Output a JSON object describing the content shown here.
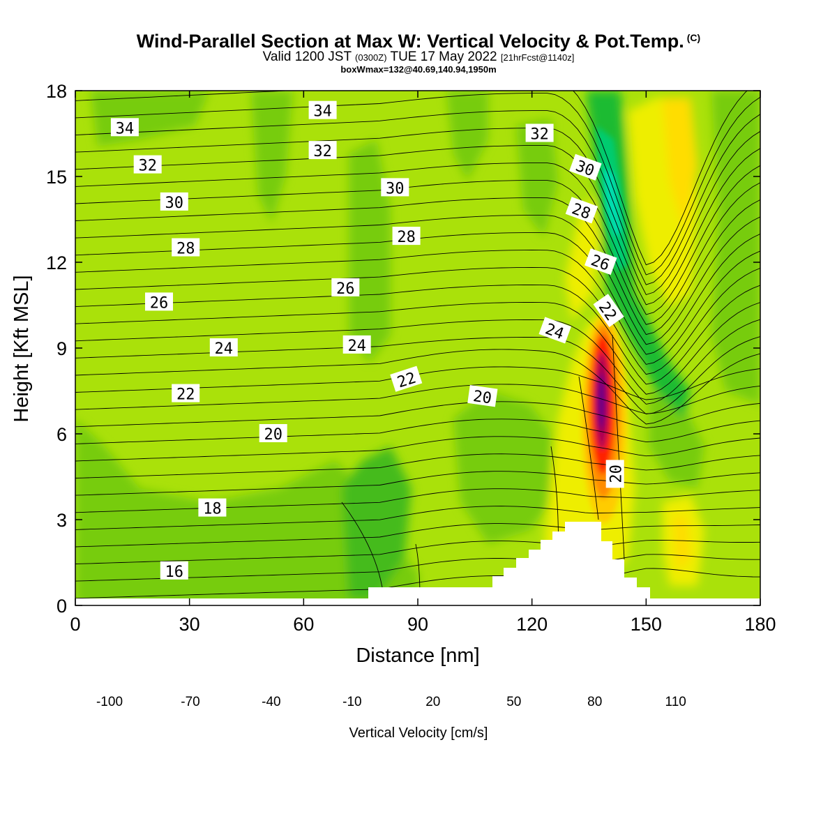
{
  "title": {
    "main": "Wind-Parallel Section at Max W: Vertical Velocity & Pot.Temp.",
    "copyright": "(C)",
    "valid_prefix": "Valid 1200 JST",
    "valid_utc": "(0300Z)",
    "valid_date": "TUE 17 May 2022",
    "forecast": "[21hrFcst@1140z]",
    "boxwmax": "boxWmax=132@40.69,140.94,1950m"
  },
  "chart_data": {
    "type": "heatmap",
    "xlabel": "Distance [nm]",
    "ylabel": "Height [Kft MSL]",
    "xlim": [
      0,
      180
    ],
    "ylim": [
      0,
      18
    ],
    "xticks": [
      "0",
      "30",
      "60",
      "90",
      "120",
      "150",
      "180"
    ],
    "yticks": [
      "0",
      "3",
      "6",
      "9",
      "12",
      "15",
      "18"
    ],
    "colorbar": {
      "title": "Vertical Velocity [cm/s]",
      "labels": [
        "-100",
        "-70",
        "-40",
        "-10",
        "20",
        "50",
        "80",
        "110"
      ],
      "levels": [
        -100,
        -90,
        -80,
        -70,
        -60,
        -50,
        -40,
        -30,
        -20,
        -10,
        0,
        10,
        20,
        30,
        40,
        50,
        60,
        70,
        80,
        90,
        100,
        110,
        120,
        130
      ],
      "colors": [
        "#0000ee",
        "#0044ee",
        "#0088ee",
        "#00bbee",
        "#00eeee",
        "#00ddb0",
        "#00cc70",
        "#1fbb30",
        "#44bb1c",
        "#77cc11",
        "#aae10a",
        "#eeee00",
        "#ffdd00",
        "#ffcc00",
        "#ffaa00",
        "#ff8c00",
        "#ff6600",
        "#ff2200",
        "#ee1100",
        "#cc0033",
        "#aa0055",
        "#880066",
        "#660088"
      ]
    },
    "contours": {
      "field": "Potential Temperature",
      "labels": [
        {
          "text": "34",
          "x": 13,
          "y": 16.7
        },
        {
          "text": "34",
          "x": 65,
          "y": 17.3
        },
        {
          "text": "32",
          "x": 19,
          "y": 15.4
        },
        {
          "text": "32",
          "x": 65,
          "y": 15.9
        },
        {
          "text": "32",
          "x": 122,
          "y": 16.5
        },
        {
          "text": "30",
          "x": 26,
          "y": 14.1
        },
        {
          "text": "30",
          "x": 84,
          "y": 14.6
        },
        {
          "text": "30",
          "x": 134,
          "y": 15.3
        },
        {
          "text": "28",
          "x": 29,
          "y": 12.5
        },
        {
          "text": "28",
          "x": 87,
          "y": 12.9
        },
        {
          "text": "28",
          "x": 133,
          "y": 13.8
        },
        {
          "text": "26",
          "x": 22,
          "y": 10.6
        },
        {
          "text": "26",
          "x": 71,
          "y": 11.1
        },
        {
          "text": "26",
          "x": 138,
          "y": 12.0
        },
        {
          "text": "24",
          "x": 39,
          "y": 9.0
        },
        {
          "text": "24",
          "x": 74,
          "y": 9.1
        },
        {
          "text": "24",
          "x": 126,
          "y": 9.6
        },
        {
          "text": "22",
          "x": 29,
          "y": 7.4
        },
        {
          "text": "22",
          "x": 87,
          "y": 7.9
        },
        {
          "text": "22",
          "x": 140,
          "y": 10.3
        },
        {
          "text": "20",
          "x": 52,
          "y": 6.0
        },
        {
          "text": "20",
          "x": 107,
          "y": 7.3
        },
        {
          "text": "20",
          "x": 142,
          "y": 4.6
        },
        {
          "text": "18",
          "x": 36,
          "y": 3.4
        },
        {
          "text": "16",
          "x": 26,
          "y": 1.2
        }
      ]
    }
  }
}
